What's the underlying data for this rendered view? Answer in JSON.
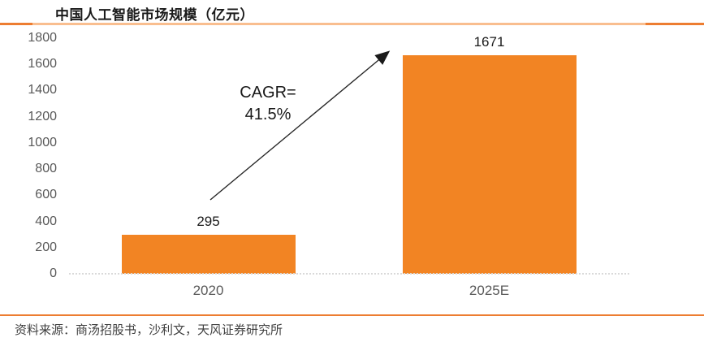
{
  "page": {
    "title": "中国人工智能市场规模（亿元）",
    "source_note": "资料来源：商汤招股书，沙利文，天风证券研究所"
  },
  "colors": {
    "bar": "#F28423",
    "rule_dark": "#ED7D31",
    "rule_light": "#F9BE8F",
    "axis_text": "#595959",
    "value_text": "#1a1a1a",
    "source_text": "#3f3f3f",
    "baseline": "#d9d9d9",
    "arrow": "#262626"
  },
  "chart_data": {
    "type": "bar",
    "title": "中国人工智能市场规模（亿元）",
    "categories": [
      "2020",
      "2025E"
    ],
    "values": [
      295,
      1671
    ],
    "value_labels": [
      "295",
      "1671"
    ],
    "xlabel": "",
    "ylabel": "",
    "ylim": [
      0,
      1800
    ],
    "yticks": [
      0,
      200,
      400,
      600,
      800,
      1000,
      1200,
      1400,
      1600,
      1800
    ],
    "grid": false,
    "legend": false,
    "annotation": {
      "lines": [
        "CAGR=",
        "41.5%"
      ],
      "arrow": {
        "from": "2020 bar top",
        "to": "2025E bar top"
      }
    }
  }
}
